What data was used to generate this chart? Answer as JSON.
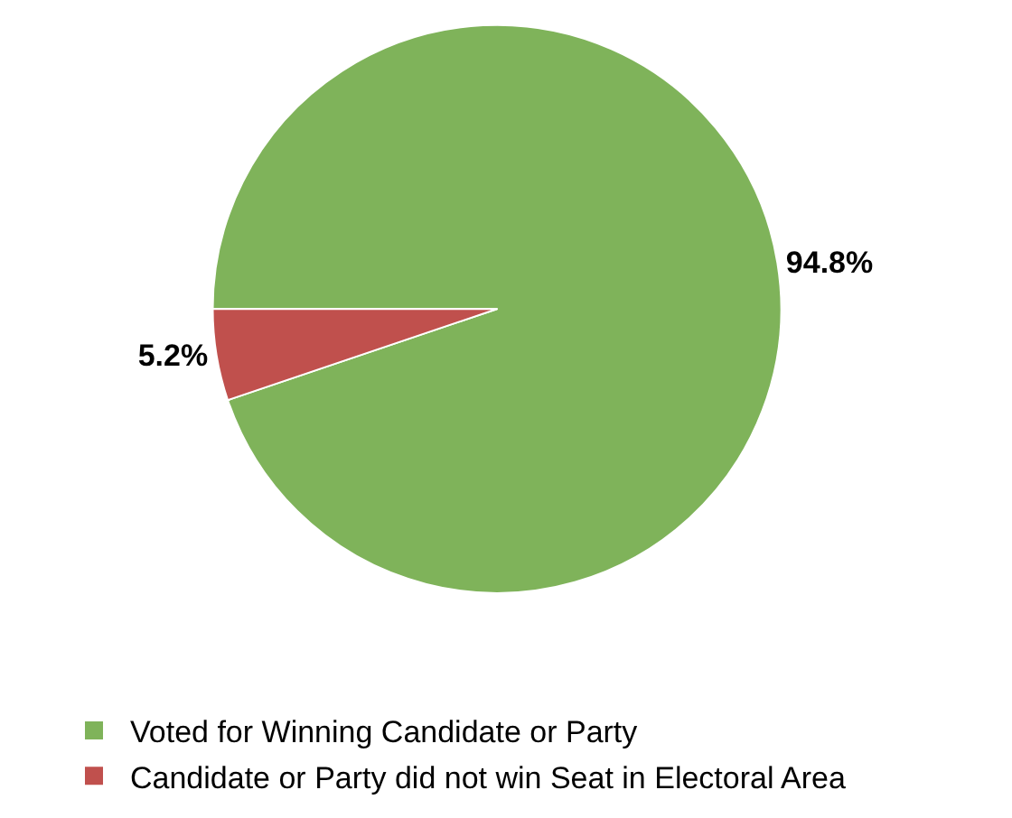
{
  "chart_data": {
    "type": "pie",
    "categories": [
      "Voted for Winning Candidate or Party",
      "Candidate or Party did not win Seat in Electoral Area"
    ],
    "values": [
      94.8,
      5.2
    ],
    "colors": [
      "#7fb35a",
      "#c0504d"
    ],
    "value_labels": [
      "94.8%",
      "5.2%"
    ],
    "legend": "bottom left"
  }
}
